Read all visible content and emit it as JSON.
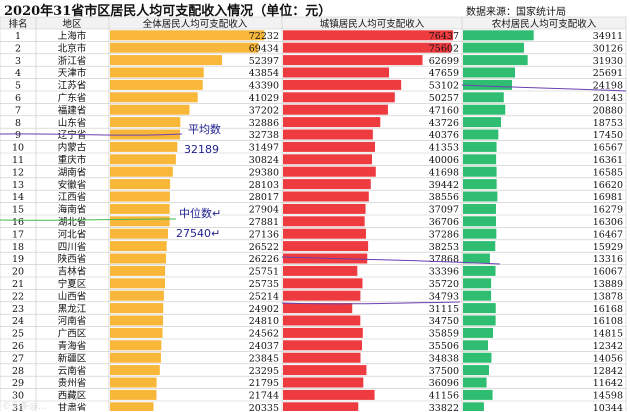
{
  "header": {
    "title": "2020年31省市区居民人均可支配收入情况（单位：元）",
    "source": "数据来源：国家统计局"
  },
  "chart_data": {
    "type": "bar",
    "columns": [
      "排名",
      "地区",
      "全体居民人均可支配收入",
      "城镇居民人均可支配收入",
      "农村居民人均可支配收入"
    ],
    "ranks": [
      1,
      2,
      3,
      4,
      5,
      6,
      7,
      8,
      9,
      10,
      11,
      12,
      13,
      14,
      15,
      16,
      17,
      18,
      19,
      20,
      21,
      22,
      23,
      24,
      25,
      26,
      27,
      28,
      29,
      30,
      31
    ],
    "categories": [
      "上海市",
      "北京市",
      "浙江省",
      "天津市",
      "江苏省",
      "广东省",
      "福建省",
      "山东省",
      "辽宁省",
      "内蒙古",
      "重庆市",
      "湖南省",
      "安徽省",
      "江西省",
      "海南省",
      "湖北省",
      "河北省",
      "四川省",
      "陕西省",
      "吉林省",
      "宁夏区",
      "山西省",
      "黑龙江",
      "河南省",
      "广西区",
      "青海省",
      "新疆区",
      "云南省",
      "贵州省",
      "西藏区",
      "甘肃省"
    ],
    "series": [
      {
        "name": "全体居民人均可支配收入",
        "color": "#f9b73a",
        "values": [
          72232,
          69434,
          52397,
          43854,
          43390,
          41029,
          37202,
          32886,
          32738,
          31497,
          30824,
          29380,
          28103,
          28017,
          27904,
          27881,
          27136,
          26522,
          26226,
          25751,
          25735,
          25214,
          24902,
          24810,
          24562,
          24037,
          23845,
          23295,
          21795,
          21744,
          20335
        ]
      },
      {
        "name": "城镇居民人均可支配收入",
        "color": "#ee3b40",
        "values": [
          76437,
          75602,
          62699,
          47659,
          53102,
          50257,
          47160,
          43726,
          40376,
          41353,
          40006,
          41698,
          39442,
          38556,
          37097,
          36706,
          37286,
          38253,
          37868,
          33396,
          35720,
          34793,
          31115,
          34750,
          35859,
          35506,
          34838,
          37500,
          36096,
          41156,
          33822
        ]
      },
      {
        "name": "农村居民人均可支配收入",
        "color": "#2fbd72",
        "values": [
          34911,
          30126,
          31930,
          25691,
          24198,
          20143,
          20880,
          18753,
          17450,
          16567,
          16361,
          16585,
          16620,
          16981,
          16279,
          16306,
          16467,
          15929,
          13316,
          16067,
          13889,
          13878,
          16168,
          16108,
          14815,
          12342,
          14056,
          12842,
          11642,
          14598,
          10344
        ]
      }
    ],
    "annotations": [
      {
        "label": "平均数",
        "value": "32189"
      },
      {
        "label": "中位数↵",
        "value": "27540↵"
      }
    ],
    "grid": true,
    "legend": "none"
  },
  "watermark": "©头条@…"
}
